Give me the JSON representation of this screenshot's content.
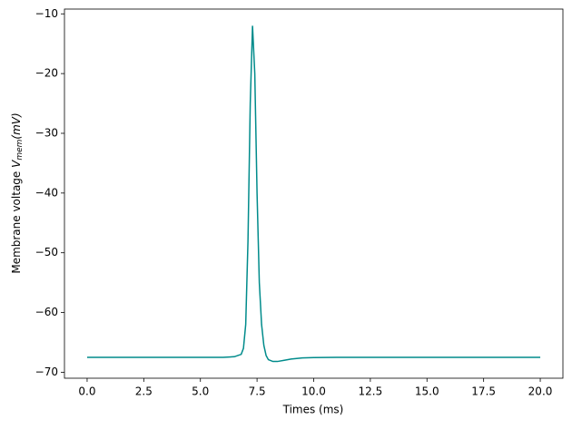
{
  "chart_data": {
    "type": "line",
    "xlabel": "Times (ms)",
    "ylabel": [
      "Membrane voltage ",
      "V",
      "mem",
      "(mV)"
    ],
    "x": [
      0,
      2,
      4,
      6,
      6.5,
      6.8,
      6.9,
      7.0,
      7.1,
      7.2,
      7.3,
      7.4,
      7.5,
      7.6,
      7.7,
      7.8,
      7.9,
      8.0,
      8.2,
      8.4,
      8.7,
      9.0,
      9.5,
      10,
      11,
      12,
      15,
      20
    ],
    "series": [
      {
        "color": "#008b8b",
        "values": [
          -67.5,
          -67.5,
          -67.5,
          -67.5,
          -67.4,
          -67.0,
          -66.0,
          -62,
          -48,
          -25,
          -12,
          -20,
          -40,
          -55,
          -62,
          -65.5,
          -67.2,
          -67.9,
          -68.2,
          -68.2,
          -68.0,
          -67.8,
          -67.6,
          -67.55,
          -67.5,
          -67.5,
          -67.5,
          -67.5
        ]
      }
    ],
    "xlim": [
      -1,
      21
    ],
    "ylim": [
      -71.0,
      -9.2
    ],
    "xticks": [
      {
        "value": 0,
        "label": "0.0"
      },
      2.5,
      {
        "value": 5,
        "label": "5.0"
      },
      7.5,
      {
        "value": 10,
        "label": "10.0"
      },
      12.5,
      {
        "value": 15,
        "label": "15.0"
      },
      17.5,
      {
        "value": 20,
        "label": "20.0"
      }
    ],
    "yticks": [
      {
        "value": -70,
        "label": "−70"
      },
      {
        "value": -60,
        "label": "−60"
      },
      {
        "value": -50,
        "label": "−50"
      },
      {
        "value": -40,
        "label": "−40"
      },
      {
        "value": -30,
        "label": "−30"
      },
      {
        "value": -20,
        "label": "−20"
      },
      {
        "value": -10,
        "label": "−10"
      }
    ],
    "grid": false
  }
}
